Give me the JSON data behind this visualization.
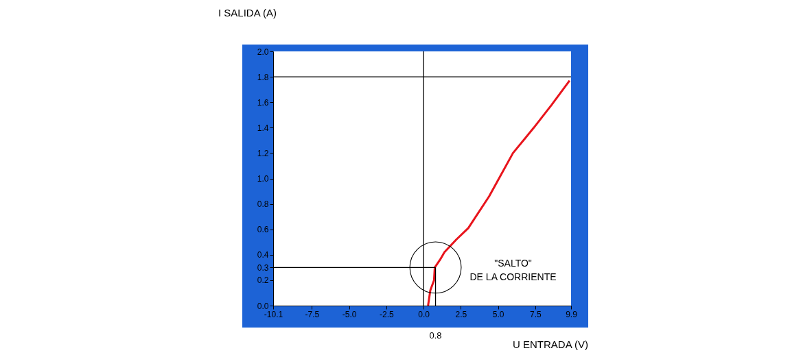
{
  "chart_data": {
    "type": "line",
    "xlabel": "U ENTRADA (V)",
    "ylabel": "I SALIDA (A)",
    "x": [
      0.3,
      0.45,
      0.7,
      0.75,
      1.1,
      1.4,
      2.2,
      3.0,
      4.4,
      6.0,
      7.4,
      8.6,
      9.8
    ],
    "series": [
      {
        "color": "#e8141c",
        "values": [
          0.0,
          0.12,
          0.2,
          0.3,
          0.36,
          0.42,
          0.52,
          0.61,
          0.86,
          1.2,
          1.4,
          1.58,
          1.77
        ]
      }
    ],
    "xlim": [
      -10.1,
      9.9
    ],
    "xticks": [
      -10.1,
      {
        "value": -7.5,
        "label": "-7.5"
      },
      {
        "value": -5.0,
        "label": "-5.0"
      },
      {
        "value": -2.5,
        "label": "-2.5"
      },
      {
        "value": 0.0,
        "label": "0.0"
      },
      {
        "value": 2.5,
        "label": "2.5"
      },
      {
        "value": 5.0,
        "label": "5.0"
      },
      {
        "value": 7.5,
        "label": "7.5"
      },
      9.9
    ],
    "ylim": [
      0.0,
      2.0
    ],
    "yticks": [
      {
        "value": 0.0,
        "label": "0.0"
      },
      0.2,
      0.3,
      0.4,
      0.6,
      0.8,
      {
        "value": 1.0,
        "label": "1.0"
      },
      1.2,
      1.4,
      1.6,
      1.8,
      {
        "value": 2.0,
        "label": "2.0"
      }
    ],
    "ref_lines": [
      {
        "axis": "x",
        "value": 0.0,
        "label": null,
        "color": "#000000"
      },
      {
        "axis": "y",
        "value": 1.8,
        "label": null,
        "color": "#000000"
      },
      {
        "axis": "x",
        "value": 0.8,
        "label": "0.8",
        "color": "#000000"
      },
      {
        "axis": "y",
        "value": 0.3,
        "label": null,
        "color": "#000000"
      }
    ],
    "annotations": [
      "\"SALTO\"\nDE LA CORRIENTE"
    ],
    "grid": false,
    "marker": "none",
    "line_style": "solid"
  }
}
